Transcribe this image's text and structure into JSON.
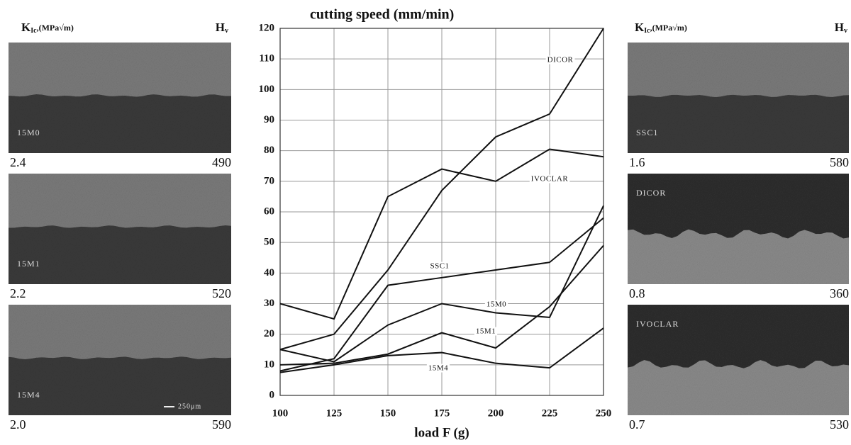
{
  "chart_data": {
    "type": "line",
    "title": "cutting speed (mm/min)",
    "x_label": "load F (g)",
    "x": [
      100,
      125,
      150,
      175,
      200,
      225,
      250
    ],
    "xlim": [
      100,
      250
    ],
    "xticks": [
      100,
      125,
      150,
      175,
      200,
      225,
      250
    ],
    "ylim": [
      0,
      120
    ],
    "yticks": [
      0,
      10,
      20,
      30,
      40,
      50,
      60,
      70,
      80,
      90,
      100,
      110,
      120
    ],
    "grid": true,
    "series": [
      {
        "name": "DICOR",
        "color": "#111111",
        "values": [
          15,
          20,
          41,
          67,
          84.5,
          92,
          120
        ]
      },
      {
        "name": "IVOCLAR",
        "color": "#111111",
        "values": [
          30,
          25,
          65,
          74,
          70,
          80.5,
          78
        ]
      },
      {
        "name": "SSC1",
        "color": "#111111",
        "values": [
          8,
          12,
          36,
          38.5,
          41,
          43.5,
          58
        ]
      },
      {
        "name": "15M0",
        "color": "#111111",
        "values": [
          15,
          11,
          23,
          30,
          27,
          25.5,
          62
        ]
      },
      {
        "name": "15M1",
        "color": "#111111",
        "values": [
          10,
          10.5,
          13.5,
          20.5,
          15.5,
          29,
          49
        ]
      },
      {
        "name": "15M4",
        "color": "#111111",
        "values": [
          7.5,
          10,
          13,
          14,
          10.5,
          9,
          22
        ]
      }
    ]
  },
  "header": {
    "k": "K",
    "k_sub": "Ic",
    "k_unit": ",(MPa√m)",
    "h": "H",
    "h_sub": "v"
  },
  "panels": {
    "left": [
      {
        "name": "15M0",
        "k": "2.4",
        "h": "490"
      },
      {
        "name": "15M1",
        "k": "2.2",
        "h": "520"
      },
      {
        "name": "15M4",
        "k": "2.0",
        "h": "590",
        "scale": "250μm"
      }
    ],
    "right": [
      {
        "name": "SSC1",
        "k": "1.6",
        "h": "580"
      },
      {
        "name": "DICOR",
        "k": "0.8",
        "h": "360"
      },
      {
        "name": "IVOCLAR",
        "k": "0.7",
        "h": "530"
      }
    ]
  }
}
